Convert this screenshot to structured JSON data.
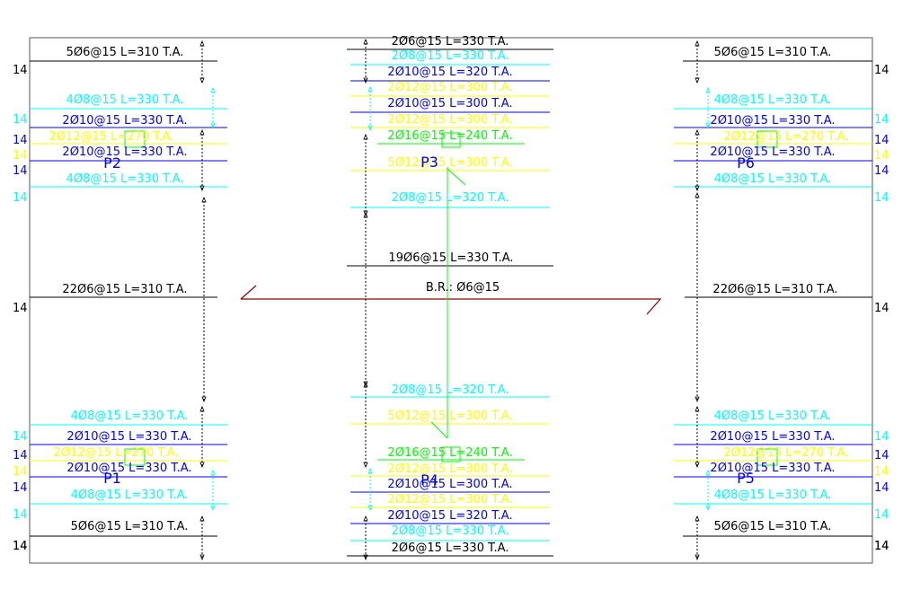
{
  "colors": {
    "black": "#000000",
    "cyan": "#00ffff",
    "blue": "#0000ff",
    "yellow": "#ffff00",
    "green": "#00ff00",
    "red": "#8b0000"
  },
  "edge_label": "14",
  "top_left": {
    "bars": [
      {
        "text": "5Ø6@15 L=310 T.A.",
        "color": "black"
      },
      {
        "text": "4Ø8@15 L=330 T.A.",
        "color": "cyan"
      },
      {
        "text": "2Ø10@15 L=330 T.A.",
        "color": "blue"
      },
      {
        "text": "2Ø12@15 L=270 T.A.",
        "color": "yellow"
      },
      {
        "text": "2Ø10@15 L=330 T.A.",
        "color": "blue"
      },
      {
        "text": "4Ø8@15 L=330 T.A.",
        "color": "cyan"
      }
    ],
    "pile": "P2"
  },
  "top_right": {
    "bars": [
      {
        "text": "5Ø6@15 L=310 T.A.",
        "color": "black"
      },
      {
        "text": "4Ø8@15 L=330 T.A.",
        "color": "cyan"
      },
      {
        "text": "2Ø10@15 L=330 T.A.",
        "color": "blue"
      },
      {
        "text": "2Ø12@15 L=270 T.A.",
        "color": "yellow"
      },
      {
        "text": "2Ø10@15 L=330 T.A.",
        "color": "blue"
      },
      {
        "text": "4Ø8@15 L=330 T.A.",
        "color": "cyan"
      }
    ],
    "pile": "P6"
  },
  "bottom_left": {
    "bars": [
      {
        "text": "4Ø8@15 L=330 T.A.",
        "color": "cyan"
      },
      {
        "text": "2Ø10@15 L=330 T.A.",
        "color": "blue"
      },
      {
        "text": "2Ø12@15 L=270 T.A.",
        "color": "yellow"
      },
      {
        "text": "2Ø10@15 L=330 T.A.",
        "color": "blue"
      },
      {
        "text": "4Ø8@15 L=330 T.A.",
        "color": "cyan"
      },
      {
        "text": "5Ø6@15 L=310 T.A.",
        "color": "black"
      }
    ],
    "pile": "P1"
  },
  "bottom_right": {
    "bars": [
      {
        "text": "4Ø8@15 L=330 T.A.",
        "color": "cyan"
      },
      {
        "text": "2Ø10@15 L=330 T.A.",
        "color": "blue"
      },
      {
        "text": "2Ø12@15 L=270 T.A.",
        "color": "yellow"
      },
      {
        "text": "2Ø10@15 L=330 T.A.",
        "color": "blue"
      },
      {
        "text": "4Ø8@15 L=330 T.A.",
        "color": "cyan"
      },
      {
        "text": "5Ø6@15 L=310 T.A.",
        "color": "black"
      }
    ],
    "pile": "P5"
  },
  "top_center": {
    "bars": [
      {
        "text": "2Ø6@15 L=330 T.A.",
        "color": "black"
      },
      {
        "text": "2Ø8@15 L=330 T.A.",
        "color": "cyan"
      },
      {
        "text": "2Ø10@15 L=320 T.A.",
        "color": "blue"
      },
      {
        "text": "2Ø12@15 L=300 T.A.",
        "color": "yellow"
      },
      {
        "text": "2Ø10@15 L=300 T.A.",
        "color": "blue"
      },
      {
        "text": "2Ø12@15 L=300 T.A.",
        "color": "yellow"
      },
      {
        "text": "2Ø16@15 L=240 T.A.",
        "color": "green"
      },
      {
        "text": "5Ø12@15 L=300 T.A.",
        "color": "yellow"
      },
      {
        "text": "2Ø8@15 L=320 T.A.",
        "color": "cyan"
      }
    ],
    "pile": "P3"
  },
  "bottom_center": {
    "bars": [
      {
        "text": "2Ø8@15 L=320 T.A.",
        "color": "cyan"
      },
      {
        "text": "5Ø12@15 L=300 T.A.",
        "color": "yellow"
      },
      {
        "text": "2Ø16@15 L=240 T.A.",
        "color": "green"
      },
      {
        "text": "2Ø12@15 L=300 T.A.",
        "color": "yellow"
      },
      {
        "text": "2Ø10@15 L=300 T.A.",
        "color": "blue"
      },
      {
        "text": "2Ø12@15 L=300 T.A.",
        "color": "yellow"
      },
      {
        "text": "2Ø10@15 L=320 T.A.",
        "color": "blue"
      },
      {
        "text": "2Ø8@15 L=330 T.A.",
        "color": "cyan"
      },
      {
        "text": "2Ø6@15 L=330 T.A.",
        "color": "black"
      }
    ],
    "pile": "P4"
  },
  "middle": {
    "left_bar": "22Ø6@15 L=310 T.A.",
    "right_bar": "22Ø6@15 L=310 T.A.",
    "center_bar": "19Ø6@15 L=330 T.A.",
    "br_label": "B.R.: Ø6@15"
  }
}
